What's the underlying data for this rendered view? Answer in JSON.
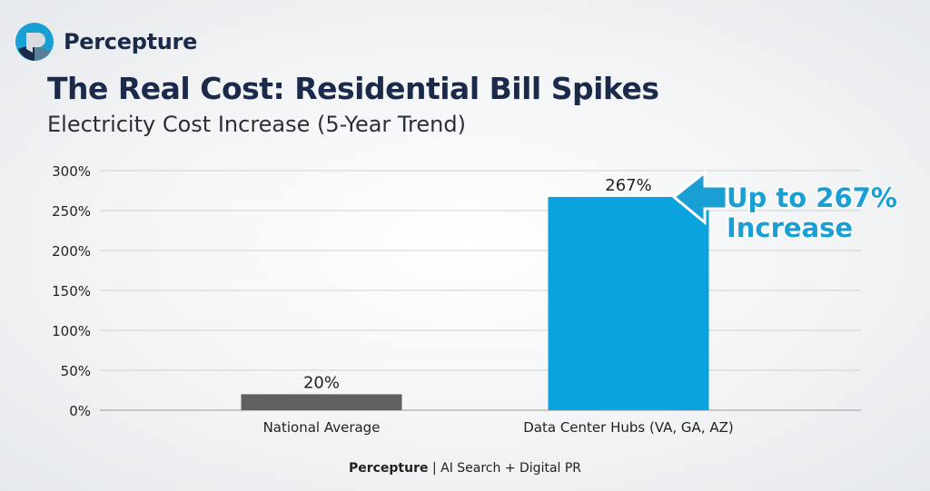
{
  "brand": {
    "name": "Percepture"
  },
  "chart_data": {
    "type": "bar",
    "title": "The Real Cost: Residential Bill Spikes",
    "subtitle": "Electricity Cost Increase (5-Year Trend)",
    "categories": [
      "National Average",
      "Data Center Hubs (VA, GA, AZ)"
    ],
    "values": [
      20,
      267
    ],
    "data_labels": [
      "20%",
      "267%"
    ],
    "bar_colors": [
      "#5f6062",
      "#0aa3de"
    ],
    "ylim": [
      0,
      300
    ],
    "yticks": [
      0,
      50,
      100,
      150,
      200,
      250,
      300
    ],
    "ytick_labels": [
      "0%",
      "50%",
      "100%",
      "150%",
      "200%",
      "250%",
      "300%"
    ],
    "grid": true,
    "xlabel": "",
    "ylabel": "",
    "annotation": {
      "line1": "Up to 267%",
      "line2": "Increase",
      "color": "#1a9fd4",
      "icon": "arrow-left-icon"
    }
  },
  "footer": {
    "brand": "Percepture",
    "separator": "|",
    "tagline": "AI Search + Digital PR"
  }
}
